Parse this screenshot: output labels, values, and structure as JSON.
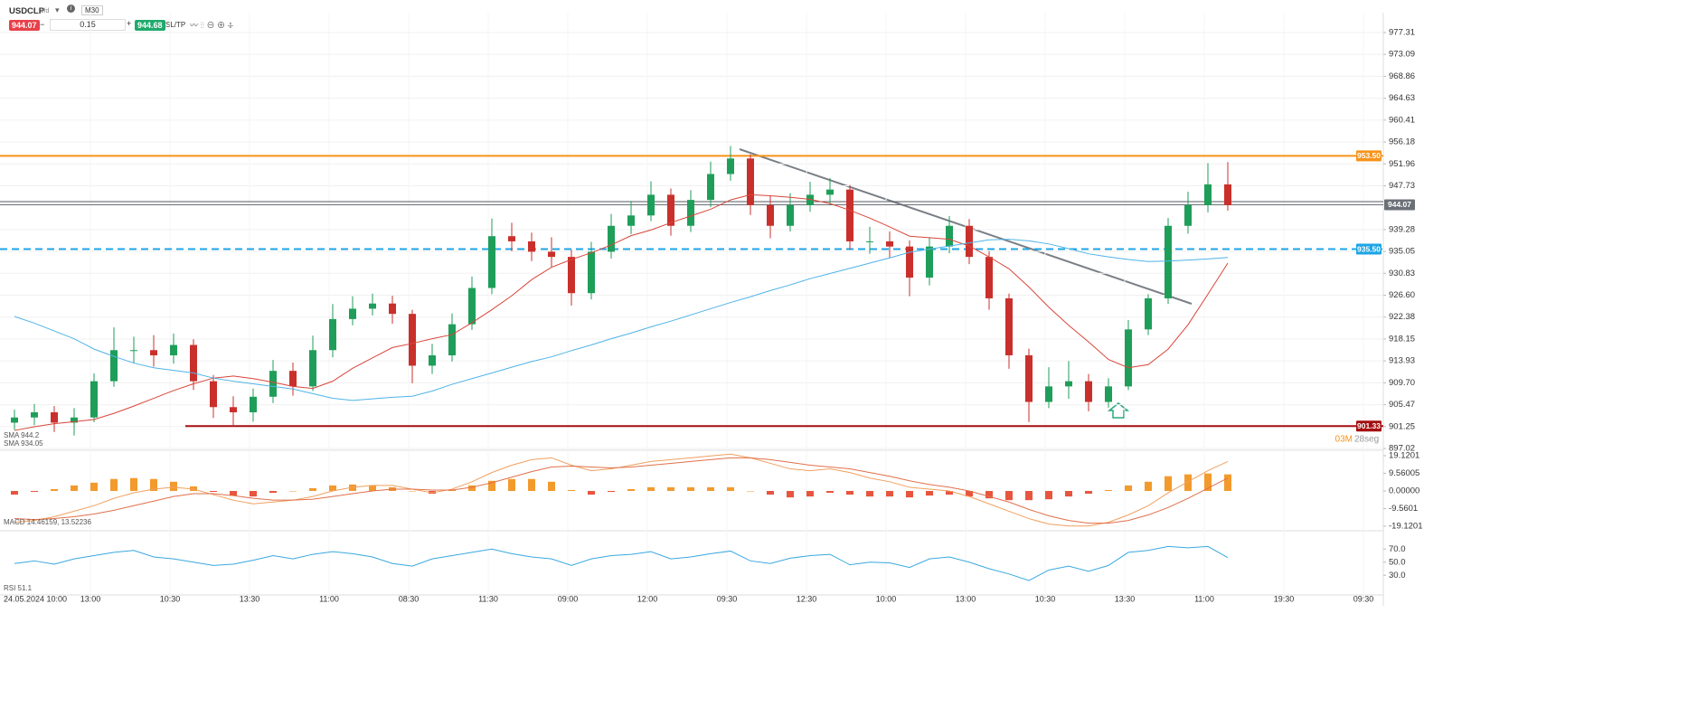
{
  "header": {
    "symbol": "USDCLP",
    "instrument_type": "cfd",
    "timeframe": "M30",
    "bid": "944.07",
    "volume": "0.15",
    "ask": "944.68",
    "sltp": "SL/TP"
  },
  "chart_data": [
    {
      "type": "candlestick",
      "up_color": "#1f9e5a",
      "down_color": "#c9302c",
      "open": [
        902,
        903,
        904,
        902,
        903,
        910,
        916,
        916,
        915,
        917,
        910,
        905,
        904,
        907,
        912,
        909,
        916,
        922,
        924,
        925,
        923,
        913,
        915,
        921,
        928,
        938,
        937,
        935,
        934,
        927,
        935,
        940,
        942,
        946,
        940,
        945,
        950,
        953,
        944,
        940,
        944,
        946,
        947,
        937,
        937,
        936,
        930,
        936,
        940,
        934,
        926,
        915,
        906,
        909,
        910,
        906,
        909,
        920,
        926,
        940,
        944,
        948
      ],
      "high": [
        904.5,
        905.6,
        905.2,
        904.8,
        911.5,
        920.4,
        918.6,
        918.9,
        919.2,
        918.1,
        911.2,
        907.1,
        908.6,
        914.1,
        913.6,
        918.8,
        924.9,
        926.4,
        926.9,
        926.5,
        923.8,
        917.2,
        923.1,
        930.2,
        941.4,
        940.6,
        938.7,
        937.8,
        935.4,
        936.9,
        942.3,
        944.8,
        948.6,
        947.2,
        946.9,
        952.4,
        955.4,
        953.8,
        945.9,
        946.3,
        948.5,
        949.2,
        947.9,
        939.8,
        938.9,
        937.2,
        937.8,
        941.9,
        941.3,
        935.1,
        926.9,
        916.3,
        912.7,
        913.9,
        911.4,
        910.6,
        921.8,
        926.8,
        941.5,
        946.6,
        952.1,
        952.3
      ],
      "low": [
        900.6,
        901.5,
        900.2,
        899.5,
        902.1,
        908.9,
        913.5,
        912.8,
        913.4,
        908.3,
        902.9,
        901.3,
        902.2,
        905.8,
        907.2,
        908.1,
        914.6,
        920.8,
        922.7,
        921.1,
        909.6,
        911.4,
        913.8,
        919.9,
        926.8,
        935.1,
        933.2,
        932.1,
        924.6,
        925.8,
        933.7,
        938.4,
        940.9,
        938.1,
        938.8,
        943.6,
        948.7,
        942.1,
        937.6,
        938.9,
        942.7,
        944.1,
        935.4,
        934.6,
        933.8,
        926.4,
        928.5,
        934.7,
        932.6,
        923.8,
        912.4,
        902.1,
        904.8,
        906.6,
        904.2,
        904.9,
        908.3,
        918.9,
        924.9,
        938.5,
        942.6,
        942.9
      ],
      "close": [
        903,
        904,
        902,
        903,
        910,
        916,
        916,
        915,
        917,
        910,
        905,
        904,
        907,
        912,
        909,
        916,
        922,
        924,
        925,
        923,
        913,
        915,
        921,
        928,
        938,
        937,
        935,
        934,
        927,
        935,
        940,
        942,
        946,
        940,
        945,
        950,
        953,
        944,
        940,
        944,
        946,
        947,
        937,
        937,
        936,
        930,
        936,
        940,
        934,
        926,
        915,
        906,
        909,
        910,
        906,
        909,
        920,
        926,
        940,
        944,
        948,
        944
      ],
      "series": [
        {
          "name": "SMA 944.2",
          "color": "#d9453a",
          "values": [
            900.5,
            901.2,
            901.8,
            902.2,
            902.6,
            903.8,
            905.2,
            906.7,
            908.2,
            909.5,
            910.6,
            911,
            910.5,
            909.8,
            909,
            908.6,
            910,
            912.5,
            914.5,
            916.5,
            917.3,
            918.2,
            919,
            921.3,
            923.8,
            926.5,
            929.6,
            932,
            933.5,
            934.8,
            936.3,
            938.1,
            939.2,
            940.6,
            941.9,
            943.2,
            945,
            946,
            945.8,
            945.5,
            945.1,
            944.3,
            943,
            941.5,
            939.8,
            938,
            937.7,
            937.4,
            936.1,
            934,
            931.7,
            928.2,
            924.3,
            920.8,
            917.6,
            914.2,
            912.6,
            913.2,
            916.2,
            920.9,
            926.8,
            932.8
          ]
        },
        {
          "name": "SMA 934.05",
          "color": "#4fb3e8",
          "values": [
            922.5,
            921.2,
            919.7,
            918.2,
            916.2,
            914.8,
            913.5,
            912.6,
            912.1,
            911.6,
            910.6,
            910,
            909.5,
            909,
            908.5,
            907.6,
            906.7,
            906.3,
            906.6,
            906.9,
            907.1,
            908.1,
            909.4,
            910.5,
            911.6,
            912.7,
            913.8,
            914.7,
            915.9,
            917,
            918.2,
            919.3,
            920.5,
            921.6,
            922.8,
            924,
            925.2,
            926.3,
            927.5,
            928.6,
            929.8,
            930.8,
            931.8,
            932.8,
            933.8,
            934.9,
            935.5,
            936.1,
            936.7,
            937.3,
            937.4,
            937.1,
            936.5,
            935.6,
            934.6,
            934,
            933.5,
            933.1,
            933.2,
            933.4,
            933.6,
            933.9
          ]
        }
      ],
      "levels": [
        {
          "value": 953.5,
          "label": "953.50",
          "color": "#f7931a"
        },
        {
          "value": 944.07,
          "label": "944.07",
          "color": "#6b7078"
        },
        {
          "value": 935.5,
          "label": "935.50",
          "color": "#1ea5e6"
        },
        {
          "value": 901.33,
          "label": "901.33",
          "color": "#a50f12"
        }
      ],
      "countdown": {
        "minutes": "03M",
        "seconds": "28seg"
      },
      "x_labels": [
        "24.05.2024 10:00",
        "13:00",
        "10:30",
        "13:30",
        "11:00",
        "08:30",
        "11:30",
        "09:00",
        "12:00",
        "09:30",
        "12:30",
        "10:00",
        "13:00",
        "10:30",
        "13:30",
        "11:00",
        "19:30",
        "09:30"
      ],
      "ylim": [
        896.67,
        981.15
      ],
      "yticks": [
        977.31,
        973.09,
        968.86,
        964.63,
        960.41,
        956.18,
        951.96,
        947.73,
        939.28,
        935.05,
        930.83,
        {
          "value": 926.6,
          "label": "926.60"
        },
        922.38,
        918.15,
        913.93,
        {
          "value": 909.7,
          "label": "909.70"
        },
        905.47,
        901.25,
        897.02
      ]
    },
    {
      "type": "macd",
      "name": "MACD 14.46159, 13.52236",
      "series": [
        {
          "color": "#f0a060",
          "values": [
            -17,
            -16,
            -14,
            -11,
            -8,
            -4,
            -1,
            1,
            2,
            1,
            -2,
            -5,
            -7,
            -6,
            -5,
            -3,
            0,
            2,
            3,
            3,
            1,
            -1,
            1,
            5,
            10,
            14,
            17,
            18,
            14,
            11,
            12,
            14,
            16,
            17,
            18,
            19,
            20,
            18,
            15,
            12,
            11,
            12,
            10,
            7,
            5,
            2,
            1,
            0,
            -3,
            -7,
            -11,
            -15,
            -18,
            -19,
            -19,
            -17,
            -13,
            -8,
            -1,
            5,
            11,
            16
          ]
        },
        {
          "color": "#e0704a",
          "values": [
            -15,
            -15.5,
            -15,
            -14,
            -12.5,
            -10.5,
            -8,
            -5.5,
            -3,
            -1.5,
            -1.5,
            -2.5,
            -4,
            -5,
            -5,
            -4.5,
            -3,
            -1.5,
            0,
            1,
            1,
            0.5,
            0.5,
            2,
            4.5,
            7.5,
            10.5,
            13,
            13.5,
            13,
            12.5,
            13,
            14,
            15,
            16,
            17,
            18,
            18,
            17,
            15.5,
            14,
            13,
            12,
            10,
            8,
            5.5,
            3.5,
            2,
            0,
            -3,
            -6,
            -10,
            -13.5,
            -16,
            -17.5,
            -17.5,
            -16,
            -13,
            -9,
            -4,
            1.5,
            7
          ]
        }
      ],
      "histogram": {
        "up_color": "#f39a2d",
        "down_color": "#e8553e",
        "values": [
          -2,
          -0.5,
          1,
          3,
          4.5,
          6.5,
          7,
          6.5,
          5,
          2.5,
          -0.5,
          -2.5,
          -3,
          -1,
          0,
          1.5,
          3,
          3.5,
          3,
          2,
          0,
          -1.5,
          0.5,
          3,
          5.5,
          6.5,
          6.5,
          5,
          0.5,
          -2,
          -0.5,
          1,
          2,
          2,
          2,
          2,
          2,
          0,
          -2,
          -3.5,
          -3,
          -1,
          -2,
          -3,
          -3,
          -3.5,
          -2.5,
          -2,
          -3,
          -4,
          -5,
          -5,
          -4.5,
          -3,
          -1.5,
          0.5,
          3,
          5,
          8,
          9,
          9.5,
          9
        ]
      },
      "ylim": [
        -21.6,
        21.6
      ],
      "yticks": [
        19.1201,
        9.56005,
        {
          "value": 0,
          "label": "0.00000"
        },
        -9.5601,
        -19.1201
      ]
    },
    {
      "type": "line",
      "name": "RSI 51.1",
      "color": "#3aa8e0",
      "values": [
        48,
        52,
        47,
        55,
        60,
        65,
        68,
        58,
        55,
        50,
        45,
        47,
        53,
        60,
        55,
        62,
        66,
        63,
        58,
        48,
        44,
        55,
        60,
        65,
        70,
        63,
        58,
        55,
        45,
        55,
        60,
        62,
        66,
        55,
        58,
        63,
        67,
        52,
        48,
        56,
        60,
        62,
        46,
        50,
        49,
        42,
        55,
        58,
        50,
        40,
        32,
        22,
        38,
        44,
        36,
        45,
        65,
        68,
        74,
        72,
        74,
        57
      ],
      "ylim": [
        0,
        96.6
      ],
      "yticks": [
        {
          "value": 70,
          "label": "70.0"
        },
        {
          "value": 50,
          "label": "50.0"
        },
        {
          "value": 30,
          "label": "30.0"
        }
      ]
    }
  ]
}
